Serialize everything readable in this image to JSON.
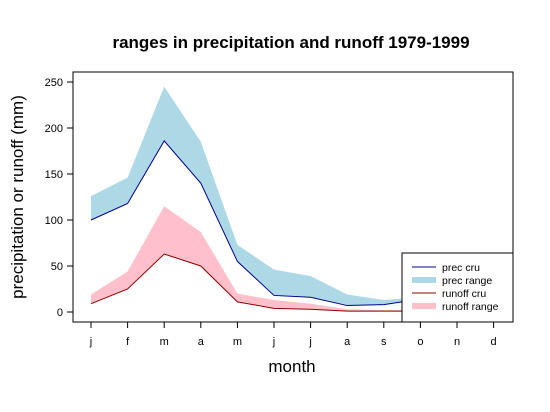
{
  "chart_data": {
    "type": "area",
    "title": "ranges in precipitation and runoff 1979-1999",
    "xlabel": "month",
    "ylabel": "precipitation or runoff (mm)",
    "categories": [
      "j",
      "f",
      "m",
      "a",
      "m",
      "j",
      "j",
      "a",
      "s",
      "o",
      "n",
      "d"
    ],
    "ylim": [
      0,
      250
    ],
    "yticks": [
      0,
      50,
      100,
      150,
      200,
      250
    ],
    "grid": false,
    "legend_position": "bottom-right",
    "series": [
      {
        "name": "prec cru",
        "kind": "line",
        "color": "#00008b",
        "values": [
          100,
          118,
          186,
          140,
          55,
          18,
          16,
          7,
          8,
          14,
          0,
          0
        ]
      },
      {
        "name": "prec range",
        "kind": "band",
        "color": "#add8e6",
        "lower": [
          100,
          118,
          186,
          140,
          55,
          18,
          16,
          7,
          8,
          14,
          0,
          0
        ],
        "upper": [
          126,
          146,
          245,
          185,
          73,
          46,
          39,
          19,
          13,
          16,
          0,
          0
        ]
      },
      {
        "name": "runoff cru",
        "kind": "line",
        "color": "#8b0000",
        "values": [
          9,
          25,
          63,
          50,
          11,
          4,
          3,
          1,
          1,
          1,
          0,
          0
        ]
      },
      {
        "name": "runoff range",
        "kind": "band",
        "color": "#ffc0cb",
        "lower": [
          9,
          25,
          63,
          50,
          11,
          4,
          3,
          1,
          1,
          1,
          0,
          0
        ],
        "upper": [
          19,
          44,
          115,
          87,
          20,
          13,
          9,
          3,
          2,
          2,
          0,
          0
        ]
      }
    ]
  }
}
